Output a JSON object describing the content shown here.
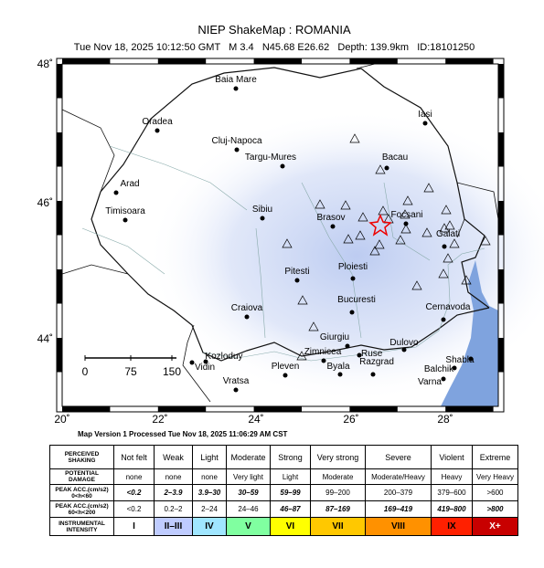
{
  "header": {
    "title": "NIEP ShakeMap : ROMANIA",
    "subtitle": "Tue Nov 18, 2025 10:12:50 GMT   M 3.4   N45.68 E26.62   Depth: 139.9km   ID:18101250"
  },
  "map": {
    "lat_labels": [
      "48˚",
      "46˚",
      "44˚"
    ],
    "lon_labels": [
      "20˚",
      "22˚",
      "24˚",
      "26˚",
      "28˚"
    ],
    "scale_labels": [
      "0",
      "75",
      "150"
    ],
    "cities": [
      {
        "name": "Baia Mare"
      },
      {
        "name": "Oradea"
      },
      {
        "name": "Cluj-Napoca"
      },
      {
        "name": "Targu-Mures"
      },
      {
        "name": "Arad"
      },
      {
        "name": "Iasi"
      },
      {
        "name": "Bacau"
      },
      {
        "name": "Timisoara"
      },
      {
        "name": "Sibiu"
      },
      {
        "name": "Brasov"
      },
      {
        "name": "Focsani"
      },
      {
        "name": "Galati"
      },
      {
        "name": "Ploiesti"
      },
      {
        "name": "Pitesti"
      },
      {
        "name": "Bucuresti"
      },
      {
        "name": "Craiova"
      },
      {
        "name": "Cernavoda"
      },
      {
        "name": "Giurgiu"
      },
      {
        "name": "Zimnicea"
      },
      {
        "name": "Ruse"
      },
      {
        "name": "Dulovo"
      },
      {
        "name": "Kozloduy"
      },
      {
        "name": "Vidin"
      },
      {
        "name": "Byala"
      },
      {
        "name": "Razgrad"
      },
      {
        "name": "Shabla"
      },
      {
        "name": "Balchik"
      },
      {
        "name": "Pleven"
      },
      {
        "name": "Varna"
      },
      {
        "name": "Vratsa"
      }
    ]
  },
  "footer": {
    "version": "Map Version 1 Processed Tue Nov 18, 2025 11:06:29 AM CST"
  },
  "legend": {
    "rows": [
      {
        "header": [
          "PERCEIVED",
          "SHAKING"
        ],
        "cells": [
          "Not felt",
          "Weak",
          "Light",
          "Moderate",
          "Strong",
          "Very strong",
          "Severe",
          "Violent",
          "Extreme"
        ]
      },
      {
        "header": [
          "POTENTIAL",
          "DAMAGE"
        ],
        "cells": [
          "none",
          "none",
          "none",
          "Very light",
          "Light",
          "Moderate",
          "Moderate/Heavy",
          "Heavy",
          "Very Heavy"
        ]
      },
      {
        "header": [
          "PEAK ACC.(cm/s2)",
          "0<h<60"
        ],
        "cells": [
          "<0.2",
          "2–3.9",
          "3.9–30",
          "30–59",
          "59–99",
          "99–200",
          "200–379",
          "379–600",
          ">600"
        ]
      },
      {
        "header": [
          "PEAK ACC.(cm/s2)",
          "60<h<200"
        ],
        "cells": [
          "<0.2",
          "0.2–2",
          "2–24",
          "24–46",
          "46–87",
          "87–169",
          "169–419",
          "419–800",
          ">800"
        ]
      },
      {
        "header": [
          "INSTRUMENTAL",
          "INTENSITY"
        ],
        "cells": [
          "I",
          "II–III",
          "IV",
          "V",
          "VI",
          "VII",
          "VIII",
          "IX",
          "X+"
        ],
        "colors": [
          "#ffffff",
          "#bfccff",
          "#a0e6ff",
          "#80ffa0",
          "#ffff00",
          "#ffc800",
          "#ff9100",
          "#ff2000",
          "#c80000"
        ]
      }
    ]
  }
}
